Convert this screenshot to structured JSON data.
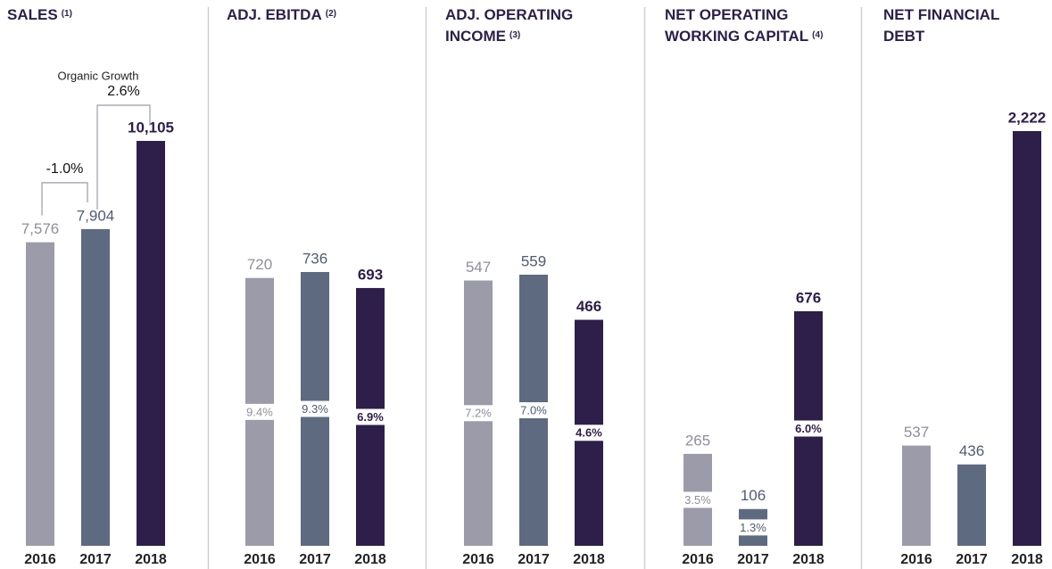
{
  "chart_data": [
    {
      "type": "bar",
      "title": [
        "SALES"
      ],
      "note": "(1)",
      "categories": [
        "2016",
        "2017",
        "2018"
      ],
      "values": [
        7576,
        7904,
        10105
      ],
      "value_labels": [
        "7,576",
        "7,904",
        "10,105"
      ],
      "colors": [
        "#9b9ba9",
        "#5d6a80",
        "#2e1e4a"
      ],
      "annotation": "Organic Growth",
      "growth": [
        -1.0,
        2.6
      ],
      "growth_labels": [
        "-1.0%",
        "2.6%"
      ]
    },
    {
      "type": "bar",
      "title": [
        "ADJ. EBITDA"
      ],
      "note": "(2)",
      "categories": [
        "2016",
        "2017",
        "2018"
      ],
      "values": [
        720,
        736,
        693
      ],
      "colors": [
        "#9b9ba9",
        "#5d6a80",
        "#2e1e4a"
      ],
      "margins": [
        9.4,
        9.3,
        6.9
      ],
      "margin_labels": [
        "9.4%",
        "9.3%",
        "6.9%"
      ]
    },
    {
      "type": "bar",
      "title": [
        "ADJ. OPERATING",
        "INCOME"
      ],
      "note": "(3)",
      "categories": [
        "2016",
        "2017",
        "2018"
      ],
      "values": [
        547,
        559,
        466
      ],
      "colors": [
        "#9b9ba9",
        "#5d6a80",
        "#2e1e4a"
      ],
      "margins": [
        7.2,
        7.0,
        4.6
      ],
      "margin_labels": [
        "7.2%",
        "7.0%",
        "4.6%"
      ]
    },
    {
      "type": "bar",
      "title": [
        "NET OPERATING",
        "WORKING CAPITAL"
      ],
      "note": "(4)",
      "categories": [
        "2016",
        "2017",
        "2018"
      ],
      "values": [
        265,
        106,
        676
      ],
      "colors": [
        "#9b9ba9",
        "#5d6a80",
        "#2e1e4a"
      ],
      "margins": [
        3.5,
        1.3,
        6.0
      ],
      "margin_labels": [
        "3.5%",
        "1.3%",
        "6.0%"
      ]
    },
    {
      "type": "bar",
      "title": [
        "NET FINANCIAL",
        "DEBT"
      ],
      "categories": [
        "2016",
        "2017",
        "2018"
      ],
      "values": [
        537,
        436,
        2222
      ],
      "value_labels": [
        "537",
        "436",
        "2,222"
      ],
      "colors": [
        "#9b9ba9",
        "#5d6a80",
        "#2e1e4a"
      ]
    }
  ]
}
